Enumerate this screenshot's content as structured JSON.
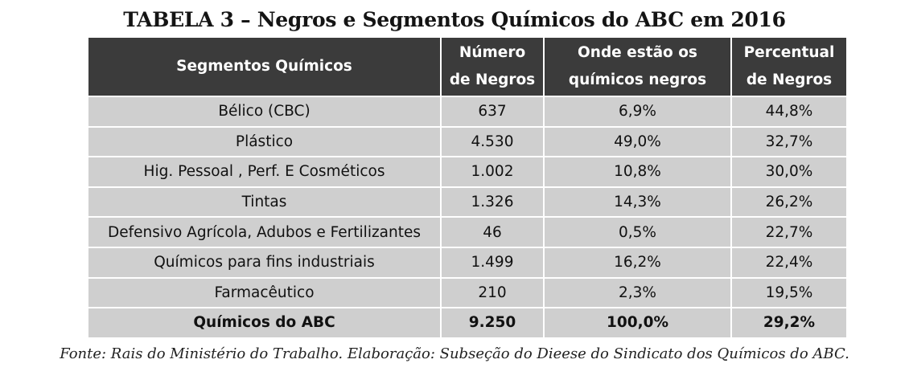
{
  "title": "TABELA 3 – Negros e Segmentos Químicos do ABC em 2016",
  "table": {
    "headers": [
      [
        "Segmentos Químicos"
      ],
      [
        "Número",
        "de Negros"
      ],
      [
        "Onde estão os",
        "químicos negros"
      ],
      [
        "Percentual",
        "de Negros"
      ]
    ],
    "rows": [
      [
        "Bélico (CBC)",
        "637",
        "6,9%",
        "44,8%"
      ],
      [
        "Plástico",
        "4.530",
        "49,0%",
        "32,7%"
      ],
      [
        "Hig. Pessoal , Perf. E Cosméticos",
        "1.002",
        "10,8%",
        "30,0%"
      ],
      [
        "Tintas",
        "1.326",
        "14,3%",
        "26,2%"
      ],
      [
        "Defensivo Agrícola, Adubos e Fertilizantes",
        "46",
        "0,5%",
        "22,7%"
      ],
      [
        "Químicos para fins industriais",
        "1.499",
        "16,2%",
        "22,4%"
      ],
      [
        "Farmacêutico",
        "210",
        "2,3%",
        "19,5%"
      ]
    ],
    "total": [
      "Químicos do ABC",
      "9.250",
      "100,0%",
      "29,2%"
    ]
  },
  "source": "Fonte: Rais do Ministério do Trabalho. Elaboração: Subseção do Dieese do Sindicato dos Químicos do ABC.",
  "colors": {
    "header_bg": "#3b3b3b",
    "header_text": "#ffffff",
    "cell_bg": "#cfcfcf"
  }
}
